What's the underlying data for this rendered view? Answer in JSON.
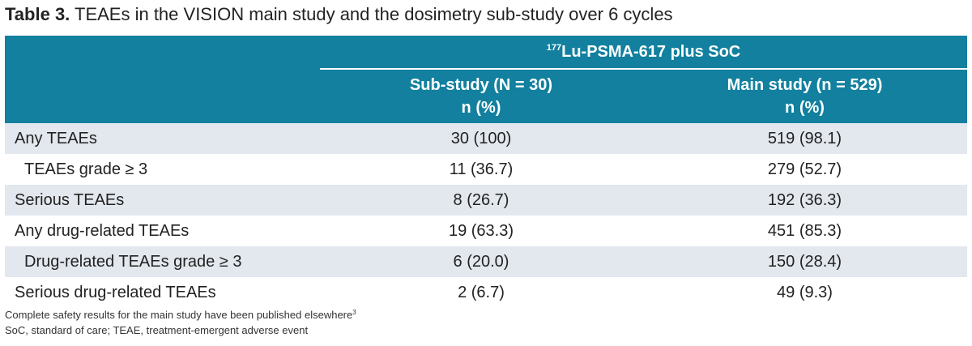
{
  "title": {
    "label": "Table 3.",
    "text": "TEAEs in the VISION main study and the dosimetry sub-study over 6 cycles"
  },
  "table": {
    "group_header": {
      "sup": "177",
      "text": "Lu-PSMA-617 plus SoC"
    },
    "columns": [
      {
        "name": "Sub-study (N = 30)",
        "unit": "n (%)"
      },
      {
        "name": "Main study (n = 529)",
        "unit": "n (%)"
      }
    ],
    "rows": [
      [
        "Any TEAEs",
        "30 (100)",
        "519 (98.1)"
      ],
      [
        "TEAEs grade ≥ 3",
        "11 (36.7)",
        "279 (52.7)"
      ],
      [
        "Serious TEAEs",
        "8 (26.7)",
        "192 (36.3)"
      ],
      [
        "Any drug-related TEAEs",
        "19 (63.3)",
        "451 (85.3)"
      ],
      [
        "Drug-related TEAEs grade ≥ 3",
        "6 (20.0)",
        "150 (28.4)"
      ],
      [
        "Serious drug-related TEAEs",
        "2 (6.7)",
        "49 (9.3)"
      ]
    ]
  },
  "footnotes": [
    {
      "text": "Complete safety results for the main study have been published elsewhere",
      "sup": "3"
    },
    {
      "text": "SoC, standard of care; TEAE, treatment-emergent adverse event"
    }
  ]
}
